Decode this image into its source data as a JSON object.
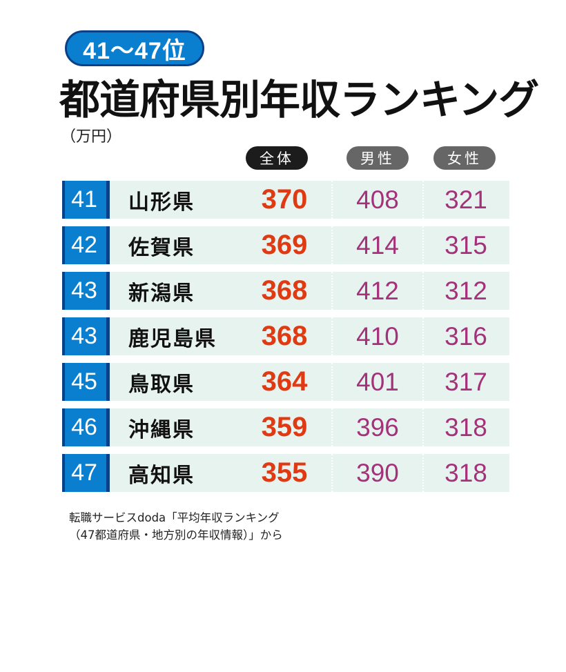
{
  "badge": "41～47位",
  "title": "都道府県別年収ランキング",
  "unit": "（万円）",
  "headers": {
    "all": "全体",
    "male": "男性",
    "female": "女性"
  },
  "rows": [
    {
      "rank": "41",
      "pref": "山形県",
      "all": "370",
      "male": "408",
      "female": "321"
    },
    {
      "rank": "42",
      "pref": "佐賀県",
      "all": "369",
      "male": "414",
      "female": "315"
    },
    {
      "rank": "43",
      "pref": "新潟県",
      "all": "368",
      "male": "412",
      "female": "312"
    },
    {
      "rank": "43",
      "pref": "鹿児島県",
      "all": "368",
      "male": "410",
      "female": "316"
    },
    {
      "rank": "45",
      "pref": "鳥取県",
      "all": "364",
      "male": "401",
      "female": "317"
    },
    {
      "rank": "46",
      "pref": "沖縄県",
      "all": "359",
      "male": "396",
      "female": "318"
    },
    {
      "rank": "47",
      "pref": "高知県",
      "all": "355",
      "male": "390",
      "female": "318"
    }
  ],
  "source": {
    "line1": "転職サービスdoda「平均年収ランキング",
    "line2": "（47都道府県・地方別の年収情報）」から"
  },
  "colors": {
    "rank_bg": "#0a7fd0",
    "row_bg": "#e7f3ef",
    "all_value": "#e03a12",
    "gender_value": "#a4327a"
  }
}
